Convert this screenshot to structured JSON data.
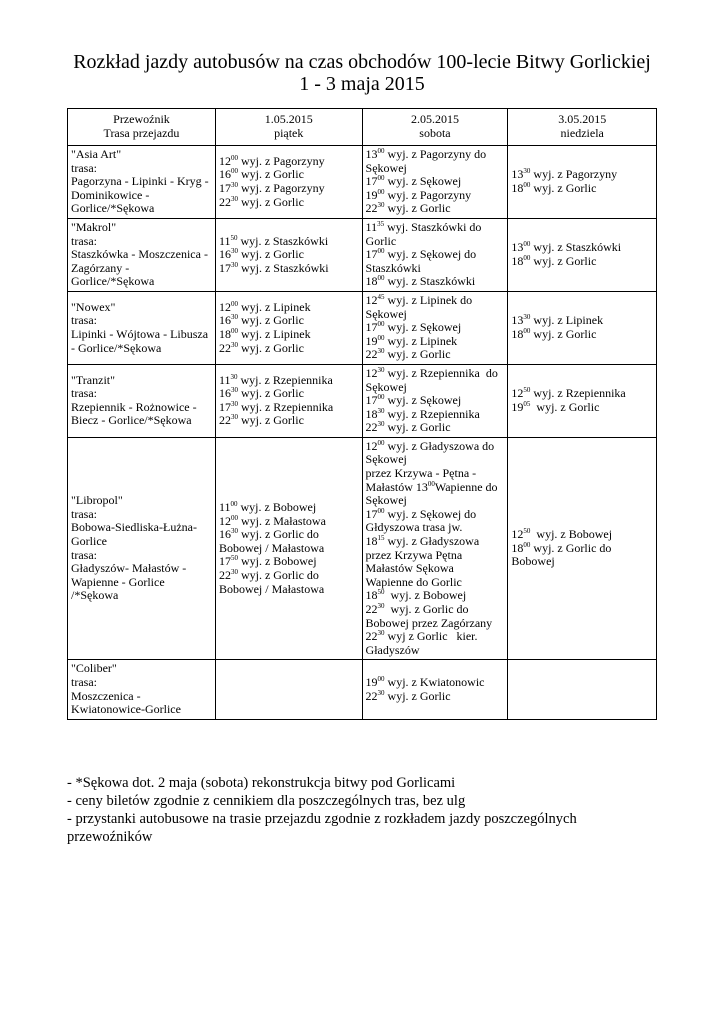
{
  "title": {
    "line1": "Rozkład jazdy autobusów na czas obchodów 100-lecie Bitwy Gorlickiej",
    "line2": "1 - 3 maja 2015"
  },
  "table": {
    "headers": [
      [
        "Przewoźnik",
        "Trasa przejazdu"
      ],
      [
        "1.05.2015",
        "piątek"
      ],
      [
        "2.05.2015",
        "sobota"
      ],
      [
        "3.05.2015",
        "niedziela"
      ]
    ],
    "rows": [
      {
        "carrier": [
          "\"Asia Art\"",
          "trasa:",
          "Pagorzyna - Lipinki - Kryg -",
          "Dominikowice -",
          "Gorlice/*Sękowa"
        ],
        "days": [
          [
            {
              "h": "12",
              "m": "00",
              "t": " wyj. z Pagorzyny"
            },
            {
              "h": "16",
              "m": "00",
              "t": " wyj. z Gorlic"
            },
            {
              "h": "17",
              "m": "30",
              "t": " wyj. z Pagorzyny"
            },
            {
              "h": "22",
              "m": "30",
              "t": " wyj. z Gorlic"
            }
          ],
          [
            {
              "h": "13",
              "m": "00",
              "t": " wyj. z Pagorzyny do"
            },
            {
              "t": "Sękowej"
            },
            {
              "h": "17",
              "m": "00",
              "t": " wyj. z Sękowej"
            },
            {
              "h": "19",
              "m": "00",
              "t": " wyj. z Pagorzyny"
            },
            {
              "h": "22",
              "m": "30",
              "t": " wyj. z Gorlic"
            }
          ],
          [
            {
              "h": "13",
              "m": "30",
              "t": " wyj. z Pagorzyny"
            },
            {
              "h": "18",
              "m": "00",
              "t": " wyj. z Gorlic"
            }
          ]
        ]
      },
      {
        "carrier": [
          "\"Makrol\"",
          "trasa:",
          "Staszkówka - Moszczenica -",
          "Zagórzany -",
          "Gorlice/*Sękowa"
        ],
        "days": [
          [
            {
              "h": "11",
              "m": "50",
              "t": " wyj. z Staszkówki"
            },
            {
              "h": "16",
              "m": "30",
              "t": " wyj. z Gorlic"
            },
            {
              "h": "17",
              "m": "30",
              "t": " wyj. z Staszkówki"
            }
          ],
          [
            {
              "h": "11",
              "m": "35",
              "t": " wyj. Staszkówki do"
            },
            {
              "t": "Gorlic"
            },
            {
              "h": "17",
              "m": "00",
              "t": " wyj. z Sękowej do"
            },
            {
              "t": "Staszkówki"
            },
            {
              "h": "18",
              "m": "00",
              "t": " wyj. z Staszkówki"
            }
          ],
          [
            {
              "h": "13",
              "m": "00",
              "t": " wyj. z Staszkówki"
            },
            {
              "h": "18",
              "m": "00",
              "t": " wyj. z Gorlic"
            }
          ]
        ]
      },
      {
        "carrier": [
          "\"Nowex\"",
          "trasa:",
          "Lipinki - Wójtowa - Libusza",
          "- Gorlice/*Sękowa"
        ],
        "days": [
          [
            {
              "h": "12",
              "m": "00",
              "t": " wyj. z Lipinek"
            },
            {
              "h": "16",
              "m": "30",
              "t": " wyj. z Gorlic"
            },
            {
              "h": "18",
              "m": "00",
              "t": " wyj. z Lipinek"
            },
            {
              "h": "22",
              "m": "30",
              "t": " wyj. z Gorlic"
            }
          ],
          [
            {
              "h": "12",
              "m": "45",
              "t": " wyj. z Lipinek do"
            },
            {
              "t": "Sękowej"
            },
            {
              "h": "17",
              "m": "00",
              "t": " wyj. z Sękowej"
            },
            {
              "h": "19",
              "m": "00",
              "t": " wyj. z Lipinek"
            },
            {
              "h": "22",
              "m": "30",
              "t": " wyj. z Gorlic"
            }
          ],
          [
            {
              "h": "13",
              "m": "30",
              "t": " wyj. z Lipinek"
            },
            {
              "h": "18",
              "m": "00",
              "t": " wyj. z Gorlic"
            }
          ]
        ]
      },
      {
        "carrier": [
          "\"Tranzit\"",
          "trasa:",
          "Rzepiennik - Rożnowice -",
          "Biecz - Gorlice/*Sękowa"
        ],
        "days": [
          [
            {
              "h": "11",
              "m": "30",
              "t": " wyj. z Rzepiennika"
            },
            {
              "h": "16",
              "m": "30",
              "t": " wyj. z Gorlic"
            },
            {
              "h": "17",
              "m": "30",
              "t": " wyj. z Rzepiennika"
            },
            {
              "h": "22",
              "m": "30",
              "t": " wyj. z Gorlic"
            }
          ],
          [
            {
              "h": "12",
              "m": "30",
              "t": " wyj. z Rzepiennika  do"
            },
            {
              "t": "Sękowej"
            },
            {
              "h": "17",
              "m": "00",
              "t": " wyj. z Sękowej"
            },
            {
              "h": "18",
              "m": "30",
              "t": " wyj. z Rzepiennika"
            },
            {
              "h": "22",
              "m": "30",
              "t": " wyj. z Gorlic"
            }
          ],
          [
            {
              "h": "12",
              "m": "50",
              "t": " wyj. z Rzepiennika"
            },
            {
              "h": "19",
              "m": "05",
              "t": "  wyj. z Gorlic"
            }
          ]
        ]
      },
      {
        "carrier": [
          "\"Libropol\"",
          "trasa:",
          "Bobowa-Siedliska-Łużna-",
          "Gorlice",
          "trasa:",
          "Gładyszów- Małastów -",
          "Wapienne - Gorlice",
          "/*Sękowa"
        ],
        "days": [
          [
            {
              "h": "11",
              "m": "00",
              "t": " wyj. z Bobowej"
            },
            {
              "h": "12",
              "m": "00",
              "t": " wyj. z Małastowa"
            },
            {
              "h": "16",
              "m": "30",
              "t": " wyj. z Gorlic do"
            },
            {
              "t": "Bobowej / Małastowa"
            },
            {
              "h": "17",
              "m": "50",
              "t": " wyj. z Bobowej"
            },
            {
              "h": "22",
              "m": "30",
              "t": " wyj. z Gorlic do"
            },
            {
              "t": "Bobowej / Małastowa"
            }
          ],
          [
            {
              "h": "12",
              "m": "00",
              "t": " wyj. z Gładyszowa do"
            },
            {
              "t": "Sękowej"
            },
            {
              "t": "przez Krzywa - Pętna -"
            },
            {
              "pre": "Małastów ",
              "h": "13",
              "m": "00",
              "t": "Wapienne do"
            },
            {
              "t": "Sękowej"
            },
            {
              "h": "17",
              "m": "00",
              "t": " wyj. z Sękowej do"
            },
            {
              "t": "Głdyszowa trasa jw."
            },
            {
              "h": "18",
              "m": "15",
              "t": " wyj. z Gładyszowa"
            },
            {
              "t": "przez Krzywa Pętna"
            },
            {
              "t": "Małastów Sękowa"
            },
            {
              "t": "Wapienne do Gorlic"
            },
            {
              "h": "18",
              "m": "50",
              "t": "  wyj. z Bobowej"
            },
            {
              "h": "22",
              "m": "30",
              "t": "  wyj. z Gorlic do"
            },
            {
              "t": "Bobowej przez Zagórzany"
            },
            {
              "h": "22",
              "m": "30",
              "t": " wyj z Gorlic   kier."
            },
            {
              "t": "Gładyszów"
            }
          ],
          [
            {
              "h": "12",
              "m": "50",
              "t": "  wyj. z Bobowej"
            },
            {
              "h": "18",
              "m": "00",
              "t": " wyj. z Gorlic do"
            },
            {
              "t": "Bobowej"
            }
          ]
        ]
      },
      {
        "carrier": [
          "\"Coliber\"",
          "trasa:",
          "Moszczenica -",
          "Kwiatonowice-Gorlice"
        ],
        "days": [
          [],
          [
            {
              "h": "19",
              "m": "00",
              "t": " wyj. z Kwiatonowic"
            },
            {
              "h": "22",
              "m": "30",
              "t": " wyj. z Gorlic"
            }
          ],
          []
        ]
      }
    ]
  },
  "notes": [
    "- *Sękowa dot. 2 maja (sobota) rekonstrukcja bitwy pod Gorlicami",
    "- ceny biletów zgodnie z cennikiem dla poszczególnych tras, bez ulg",
    "- przystanki autobusowe na trasie przejazdu zgodnie z rozkładem jazdy poszczególnych przewoźników"
  ]
}
